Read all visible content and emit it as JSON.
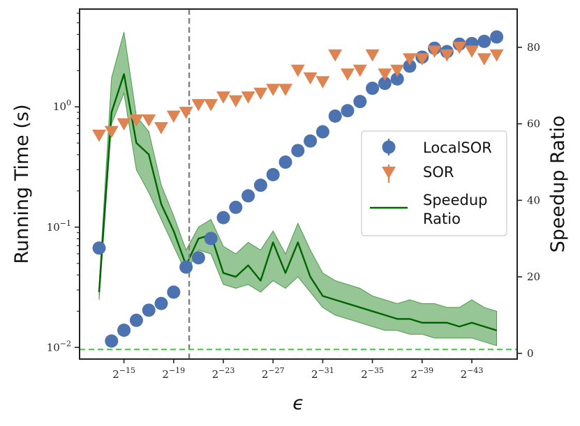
{
  "chart_data": {
    "type": "scatter",
    "xlabel": "ϵ",
    "ylabel": "Running Time (s)",
    "y2label": "Speedup Ratio",
    "x_exponents": [
      -13,
      -14,
      -15,
      -16,
      -17,
      -18,
      -19,
      -20,
      -21,
      -22,
      -23,
      -24,
      -25,
      -26,
      -27,
      -28,
      -29,
      -30,
      -31,
      -32,
      -33,
      -34,
      -35,
      -36,
      -37,
      -38,
      -39,
      -40,
      -41,
      -42,
      -43,
      -44,
      -45,
      -46
    ],
    "x_tick_exponents": [
      -15,
      -19,
      -23,
      -27,
      -31,
      -35,
      -39,
      -43
    ],
    "x_tick_labels": [
      {
        "base": "2",
        "exp": "−15"
      },
      {
        "base": "2",
        "exp": "−19"
      },
      {
        "base": "2",
        "exp": "−23"
      },
      {
        "base": "2",
        "exp": "−27"
      },
      {
        "base": "2",
        "exp": "−31"
      },
      {
        "base": "2",
        "exp": "−35"
      },
      {
        "base": "2",
        "exp": "−39"
      },
      {
        "base": "2",
        "exp": "−43"
      }
    ],
    "y_scale": "log",
    "ylim": [
      0.008,
      6.5
    ],
    "y_tick_labels": [
      {
        "value": 0.01,
        "base": "10",
        "exp": "−2"
      },
      {
        "value": 0.1,
        "base": "10",
        "exp": "−1"
      },
      {
        "value": 1,
        "base": "10",
        "exp": "0"
      }
    ],
    "y2lim": [
      -1.5,
      90
    ],
    "y2_ticks": [
      0,
      20,
      40,
      60,
      80
    ],
    "y2_tick_labels": [
      "0",
      "20",
      "40",
      "60",
      "80"
    ],
    "vline_exponent": -20.25,
    "hline_speedup": 1,
    "series": [
      {
        "name": "LocalSOR",
        "label": "LocalSOR",
        "axis": "left",
        "marker": "circle",
        "color": "#4c72b0",
        "values": [
          0.067,
          0.0113,
          0.0139,
          0.0168,
          0.0204,
          0.0232,
          0.0288,
          0.0465,
          0.0556,
          0.0805,
          0.12,
          0.146,
          0.182,
          0.223,
          0.273,
          0.347,
          0.433,
          0.52,
          0.62,
          0.838,
          0.929,
          1.107,
          1.426,
          1.568,
          1.706,
          2.18,
          2.59,
          3.07,
          2.88,
          3.32,
          3.36,
          3.5,
          3.81,
          null
        ]
      },
      {
        "name": "SOR",
        "label": "SOR",
        "axis": "right",
        "marker": "triangle-down",
        "color": "#dd8452",
        "values": [
          57,
          58,
          60,
          61,
          61,
          59,
          62,
          63,
          65,
          65,
          67,
          66,
          67,
          68,
          69,
          69,
          74,
          72,
          71,
          78,
          73,
          74,
          78,
          73,
          74,
          77,
          77,
          79,
          78,
          80,
          79,
          77,
          78,
          null
        ]
      },
      {
        "name": "Speedup Ratio",
        "label": "Speedup",
        "label_line2": "Ratio",
        "axis": "right",
        "marker": "line",
        "color": "#006400",
        "band_color": "#2e8b2e",
        "values": [
          16,
          63,
          73,
          55,
          52,
          39,
          32,
          23,
          30,
          31,
          21,
          20,
          23,
          19,
          29,
          21,
          29,
          20,
          15,
          14,
          13,
          12,
          11,
          10,
          9,
          9,
          8,
          8,
          8,
          7,
          8,
          7,
          6,
          null
        ],
        "band_low": [
          14,
          60,
          68,
          48,
          42,
          35,
          28,
          21,
          27,
          26,
          18,
          17,
          18,
          16,
          19,
          17,
          20,
          16,
          12,
          10,
          9,
          8,
          7,
          6,
          6,
          5,
          5,
          4,
          4,
          4,
          4,
          3,
          2,
          null
        ],
        "band_high": [
          18,
          72,
          84,
          62,
          58,
          44,
          36,
          27,
          33,
          35,
          28,
          26,
          29,
          27,
          32,
          26,
          34,
          27,
          21,
          19,
          18,
          17,
          15,
          14,
          13,
          14,
          13,
          13,
          12,
          12,
          14,
          12,
          11,
          null
        ]
      }
    ],
    "legend_position": "center-right"
  }
}
